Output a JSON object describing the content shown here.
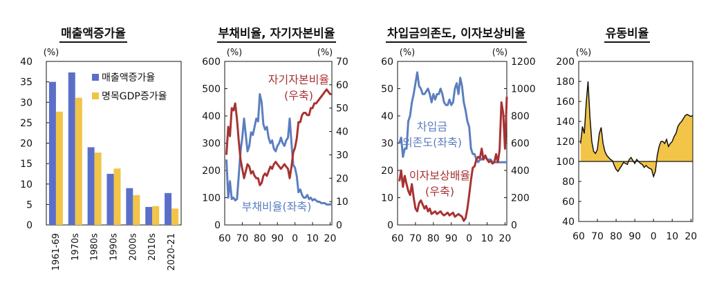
{
  "chart_data": [
    {
      "type": "bar",
      "title": "매출액증가율",
      "unit_label": "(%)",
      "categories": [
        "1961-69",
        "1970s",
        "1980s",
        "1990s",
        "2000s",
        "2010s",
        "2020-21"
      ],
      "series": [
        {
          "name": "매출액증가율",
          "color": "#5b6fc9",
          "values": [
            35,
            37.3,
            19,
            12.5,
            9,
            4.4,
            7.8
          ]
        },
        {
          "name": "명목GDP증가율",
          "color": "#f2c447",
          "values": [
            27.7,
            31.1,
            17.7,
            13.8,
            7.3,
            4.6,
            4.0
          ]
        }
      ],
      "ylim": [
        0,
        40
      ],
      "yticks": [
        0,
        5,
        10,
        15,
        20,
        25,
        30,
        35,
        40
      ],
      "legend": "top-right"
    },
    {
      "type": "line",
      "title": "부채비율, 자기자본비율",
      "left_unit": "(%)",
      "right_unit": "(%)",
      "xlim": [
        60,
        21
      ],
      "xticks": [
        60,
        70,
        80,
        90,
        0,
        10,
        20
      ],
      "ylim_left": [
        0,
        600
      ],
      "yticks_left": [
        0,
        100,
        200,
        300,
        400,
        500,
        600
      ],
      "ylim_right": [
        0,
        70
      ],
      "yticks_right": [
        0,
        10,
        20,
        30,
        40,
        50,
        60,
        70
      ],
      "series": [
        {
          "name": "부채비율(좌축)",
          "axis": "left",
          "color": "#5b7ec0",
          "x": [
            1961,
            1962,
            1963,
            1964,
            1965,
            1966,
            1967,
            1968,
            1969,
            1970,
            1971,
            1972,
            1973,
            1974,
            1975,
            1976,
            1977,
            1978,
            1979,
            1980,
            1981,
            1982,
            1983,
            1984,
            1985,
            1986,
            1987,
            1988,
            1989,
            1990,
            1991,
            1992,
            1993,
            1994,
            1995,
            1996,
            1997,
            1998,
            1999,
            2000,
            2001,
            2002,
            2003,
            2004,
            2005,
            2006,
            2007,
            2008,
            2009,
            2010,
            2011,
            2012,
            2013,
            2014,
            2015,
            2016,
            2017,
            2018,
            2019,
            2020,
            2021
          ],
          "y": [
            240,
            100,
            160,
            95,
            100,
            90,
            95,
            180,
            270,
            320,
            390,
            330,
            270,
            290,
            340,
            330,
            360,
            390,
            380,
            480,
            450,
            370,
            350,
            360,
            320,
            300,
            310,
            280,
            270,
            290,
            300,
            320,
            300,
            290,
            310,
            320,
            390,
            300,
            220,
            210,
            180,
            120,
            130,
            110,
            100,
            100,
            110,
            95,
            100,
            90,
            95,
            90,
            85,
            85,
            80,
            80,
            80,
            75,
            75,
            75,
            78
          ],
          "label": "부채비율(좌축)"
        },
        {
          "name": "자기자본비율(우축)",
          "axis": "right",
          "color": "#a83232",
          "x": [
            1961,
            1962,
            1963,
            1964,
            1965,
            1966,
            1967,
            1968,
            1969,
            1970,
            1971,
            1972,
            1973,
            1974,
            1975,
            1976,
            1977,
            1978,
            1979,
            1980,
            1981,
            1982,
            1983,
            1984,
            1985,
            1986,
            1987,
            1988,
            1989,
            1990,
            1991,
            1992,
            1993,
            1994,
            1995,
            1996,
            1997,
            1998,
            1999,
            2000,
            2001,
            2002,
            2003,
            2004,
            2005,
            2006,
            2007,
            2008,
            2009,
            2010,
            2011,
            2012,
            2013,
            2014,
            2015,
            2016,
            2017,
            2018,
            2019,
            2020,
            2021
          ],
          "y": [
            30,
            42,
            38,
            50,
            49,
            52,
            45,
            36,
            28,
            24,
            20,
            23,
            26,
            25,
            22,
            23,
            21,
            20,
            20,
            17,
            18,
            21,
            22,
            21,
            23,
            25,
            24,
            26,
            27,
            26,
            25,
            24,
            25,
            26,
            25,
            24,
            20,
            25,
            31,
            33,
            37,
            44,
            44,
            47,
            48,
            48,
            47,
            47,
            50,
            50,
            52,
            52,
            53,
            54,
            55,
            56,
            57,
            58,
            57,
            56,
            56
          ],
          "label": "자기자본비율\n(우축)"
        }
      ]
    },
    {
      "type": "line",
      "title": "차입금의존도, 이자보상비율",
      "left_unit": "(%)",
      "right_unit": "(%)",
      "xlim": [
        60,
        21
      ],
      "xticks": [
        60,
        70,
        80,
        90,
        0,
        10,
        20
      ],
      "ylim_left": [
        0,
        60
      ],
      "yticks_left": [
        0,
        10,
        20,
        30,
        40,
        50,
        60
      ],
      "ylim_right": [
        0,
        1200
      ],
      "yticks_right": [
        0,
        200,
        400,
        600,
        800,
        1000,
        1200
      ],
      "series": [
        {
          "name": "차입금의존도(좌축)",
          "axis": "left",
          "color": "#5b7ec0",
          "x": [
            1961,
            1962,
            1963,
            1964,
            1965,
            1966,
            1967,
            1968,
            1969,
            1970,
            1971,
            1972,
            1973,
            1974,
            1975,
            1976,
            1977,
            1978,
            1979,
            1980,
            1981,
            1982,
            1983,
            1984,
            1985,
            1986,
            1987,
            1988,
            1989,
            1990,
            1991,
            1992,
            1993,
            1994,
            1995,
            1996,
            1997,
            1998,
            1999,
            2000,
            2001,
            2002,
            2003,
            2004,
            2005,
            2006,
            2007,
            2008,
            2009,
            2010,
            2011,
            2012,
            2013,
            2014,
            2015,
            2016,
            2017,
            2018,
            2019,
            2020,
            2021
          ],
          "y": [
            30,
            32,
            25,
            28,
            28,
            38,
            40,
            45,
            48,
            52,
            56,
            51,
            50,
            48,
            48,
            49,
            50,
            48,
            45,
            48,
            46,
            48,
            48,
            50,
            48,
            45,
            44,
            44,
            46,
            44,
            45,
            50,
            52,
            48,
            54,
            51,
            45,
            42,
            38,
            36,
            28,
            26,
            26,
            24,
            23,
            24,
            24,
            25,
            25,
            24,
            24,
            24,
            23,
            23,
            23,
            23,
            23,
            23,
            23,
            23,
            23
          ],
          "label": "차입금\n의존도(좌축)"
        },
        {
          "name": "이자보상배율(우축)",
          "axis": "right",
          "color": "#a83232",
          "x": [
            1961,
            1962,
            1963,
            1964,
            1965,
            1966,
            1967,
            1968,
            1969,
            1970,
            1971,
            1972,
            1973,
            1974,
            1975,
            1976,
            1977,
            1978,
            1979,
            1980,
            1981,
            1982,
            1983,
            1984,
            1985,
            1986,
            1987,
            1988,
            1989,
            1990,
            1991,
            1992,
            1993,
            1994,
            1995,
            1996,
            1997,
            1998,
            1999,
            2000,
            2001,
            2002,
            2003,
            2004,
            2005,
            2006,
            2007,
            2008,
            2009,
            2010,
            2011,
            2012,
            2013,
            2014,
            2015,
            2016,
            2017,
            2018,
            2019,
            2020,
            2021
          ],
          "y": [
            320,
            400,
            280,
            360,
            300,
            250,
            220,
            300,
            200,
            120,
            100,
            160,
            180,
            150,
            120,
            140,
            100,
            120,
            80,
            90,
            100,
            80,
            90,
            100,
            80,
            70,
            80,
            90,
            70,
            80,
            90,
            60,
            70,
            80,
            70,
            60,
            30,
            50,
            120,
            220,
            330,
            420,
            430,
            480,
            500,
            490,
            560,
            480,
            510,
            480,
            460,
            470,
            450,
            460,
            520,
            460,
            550,
            900,
            820,
            560,
            940
          ],
          "label": "이자보상배율\n(우축)"
        }
      ]
    },
    {
      "type": "area",
      "title": "유동비율",
      "unit_label": "(%)",
      "baseline": 100,
      "fill_color": "#f2c447",
      "xlim": [
        60,
        21
      ],
      "xticks": [
        60,
        70,
        80,
        90,
        0,
        10,
        20
      ],
      "ylim": [
        40,
        200
      ],
      "yticks": [
        40,
        60,
        80,
        100,
        120,
        140,
        160,
        180,
        200
      ],
      "series": [
        {
          "name": "유동비율",
          "x": [
            1961,
            1962,
            1963,
            1964,
            1965,
            1966,
            1967,
            1968,
            1969,
            1970,
            1971,
            1972,
            1973,
            1974,
            1975,
            1976,
            1977,
            1978,
            1979,
            1980,
            1981,
            1982,
            1983,
            1984,
            1985,
            1986,
            1987,
            1988,
            1989,
            1990,
            1991,
            1992,
            1993,
            1994,
            1995,
            1996,
            1997,
            1998,
            1999,
            2000,
            2001,
            2002,
            2003,
            2004,
            2005,
            2006,
            2007,
            2008,
            2009,
            2010,
            2011,
            2012,
            2013,
            2014,
            2015,
            2016,
            2017,
            2018,
            2019,
            2020,
            2021
          ],
          "y": [
            118,
            135,
            128,
            158,
            180,
            145,
            120,
            110,
            108,
            112,
            128,
            134,
            118,
            110,
            106,
            104,
            102,
            101,
            96,
            92,
            90,
            93,
            96,
            99,
            98,
            97,
            102,
            104,
            101,
            98,
            102,
            100,
            98,
            97,
            94,
            96,
            94,
            93,
            92,
            85,
            90,
            106,
            115,
            120,
            120,
            118,
            122,
            115,
            118,
            120,
            125,
            128,
            135,
            138,
            140,
            143,
            146,
            147,
            146,
            145,
            146
          ]
        }
      ]
    }
  ]
}
